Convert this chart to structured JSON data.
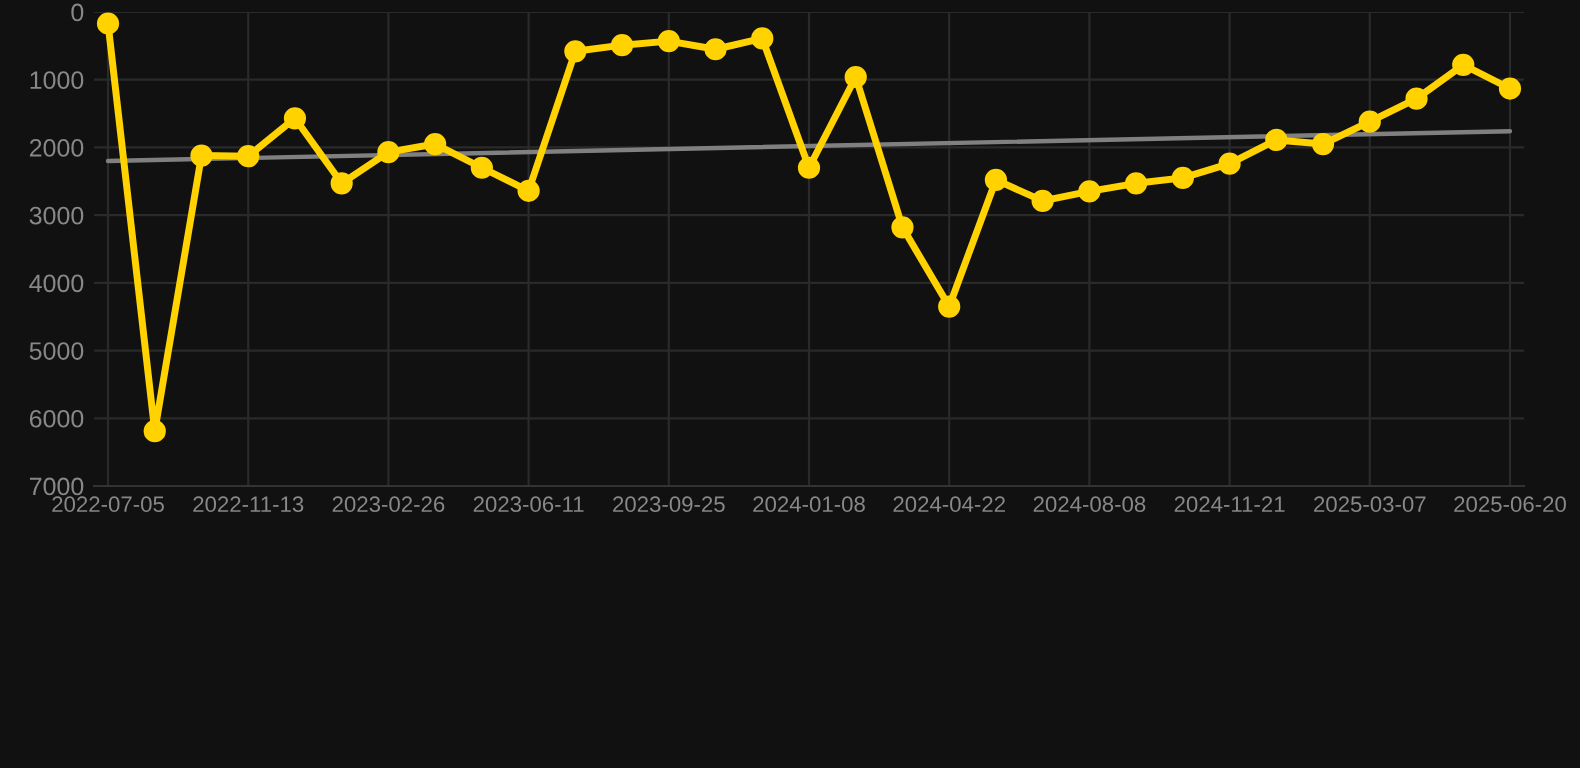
{
  "chart_data": {
    "type": "line",
    "categories": [
      "2022-07-05",
      null,
      null,
      "2022-11-13",
      null,
      null,
      "2023-02-26",
      null,
      null,
      "2023-06-11",
      null,
      null,
      "2023-09-25",
      null,
      null,
      "2024-01-08",
      null,
      null,
      "2024-04-22",
      null,
      null,
      "2024-08-08",
      null,
      null,
      "2024-11-21",
      null,
      null,
      "2025-03-07",
      null,
      null,
      "2025-06-20"
    ],
    "series": [
      {
        "color": "#ffd200",
        "marker": "circle",
        "values": [
          170,
          6190,
          2120,
          2130,
          1570,
          2530,
          2070,
          1950,
          2300,
          2640,
          580,
          490,
          430,
          550,
          390,
          2300,
          960,
          3180,
          4350,
          2480,
          2790,
          2650,
          2530,
          2450,
          2240,
          1890,
          1950,
          1620,
          1280,
          780,
          1130
        ]
      },
      {
        "color": "#808080",
        "marker": "none",
        "values": [
          2200,
          null,
          null,
          null,
          null,
          null,
          null,
          null,
          null,
          null,
          null,
          null,
          null,
          null,
          null,
          null,
          null,
          null,
          null,
          null,
          null,
          null,
          null,
          null,
          null,
          null,
          null,
          null,
          null,
          null,
          1760
        ]
      }
    ],
    "ylim": [
      7000,
      0
    ],
    "yticks": [
      0,
      1000,
      2000,
      3000,
      4000,
      5000,
      6000,
      7000
    ],
    "grid": true
  }
}
